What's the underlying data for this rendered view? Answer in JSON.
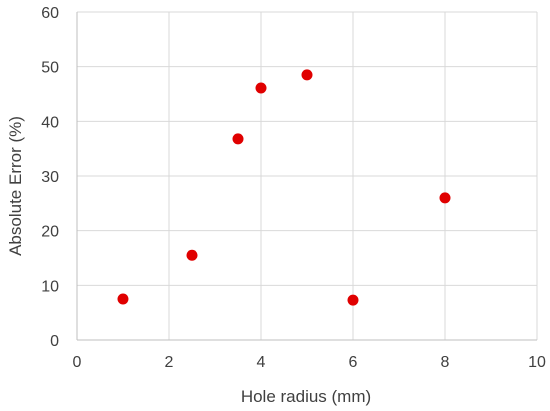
{
  "chart_data": {
    "type": "scatter",
    "title": "",
    "xlabel": "Hole radius (mm)",
    "ylabel": "Absolute Error (%)",
    "xlim": [
      0,
      10
    ],
    "ylim": [
      0,
      60
    ],
    "xticks": [
      0,
      2,
      4,
      6,
      8,
      10
    ],
    "yticks": [
      0,
      10,
      20,
      30,
      40,
      50,
      60
    ],
    "grid": true,
    "legend": "none",
    "series": [
      {
        "color": "#e00000",
        "points": [
          {
            "x": 1,
            "y": 7.5
          },
          {
            "x": 2.5,
            "y": 15.5
          },
          {
            "x": 3.5,
            "y": 36.8
          },
          {
            "x": 4,
            "y": 46.1
          },
          {
            "x": 5,
            "y": 48.5
          },
          {
            "x": 6,
            "y": 7.3
          },
          {
            "x": 8,
            "y": 26
          }
        ]
      }
    ]
  }
}
